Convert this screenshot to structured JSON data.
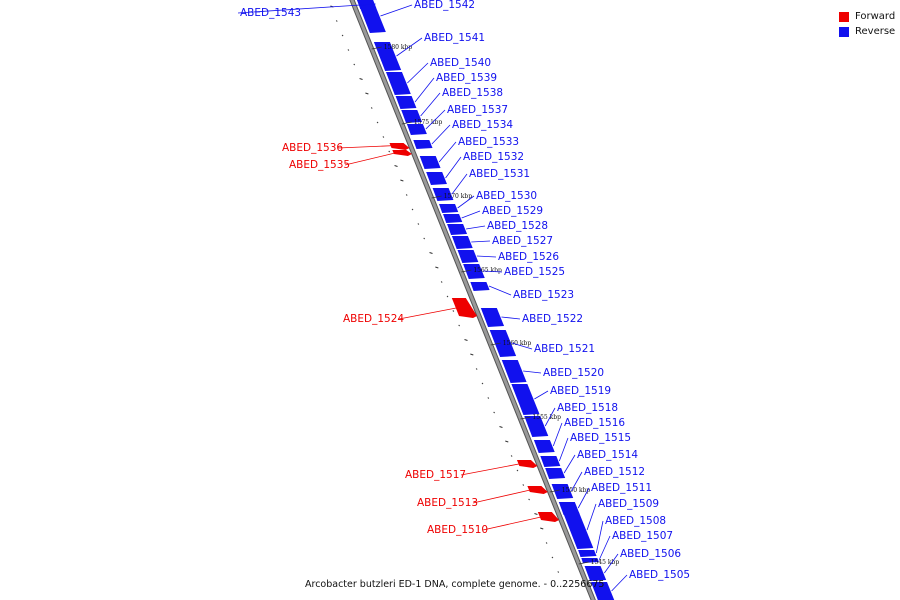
{
  "legend": {
    "forward_label": "Forward",
    "reverse_label": "Reverse",
    "forward_color": "#ee0000",
    "reverse_color": "#1111ee"
  },
  "caption": "Arcobacter butzleri ED-1 DNA, complete genome. - 0..2256675",
  "colors": {
    "axis": "#999999",
    "axis_edge": "#555555",
    "forward": "#ee0000",
    "reverse": "#1111ee"
  },
  "genome": {
    "ticks": [
      "1580 kbp",
      "1575 kbp",
      "1570 kbp",
      "1565 kbp",
      "1560 kbp",
      "1555 kbp",
      "1550 kbp",
      "1545 kbp"
    ],
    "genes": [
      {
        "name": "ABED_1543",
        "strand": "reverse"
      },
      {
        "name": "ABED_1542",
        "strand": "reverse"
      },
      {
        "name": "ABED_1541",
        "strand": "reverse"
      },
      {
        "name": "ABED_1540",
        "strand": "reverse"
      },
      {
        "name": "ABED_1539",
        "strand": "reverse"
      },
      {
        "name": "ABED_1538",
        "strand": "reverse"
      },
      {
        "name": "ABED_1537",
        "strand": "reverse"
      },
      {
        "name": "ABED_1534",
        "strand": "reverse"
      },
      {
        "name": "ABED_1536",
        "strand": "forward"
      },
      {
        "name": "ABED_1535",
        "strand": "forward"
      },
      {
        "name": "ABED_1533",
        "strand": "reverse"
      },
      {
        "name": "ABED_1532",
        "strand": "reverse"
      },
      {
        "name": "ABED_1531",
        "strand": "reverse"
      },
      {
        "name": "ABED_1530",
        "strand": "reverse"
      },
      {
        "name": "ABED_1529",
        "strand": "reverse"
      },
      {
        "name": "ABED_1528",
        "strand": "reverse"
      },
      {
        "name": "ABED_1527",
        "strand": "reverse"
      },
      {
        "name": "ABED_1526",
        "strand": "reverse"
      },
      {
        "name": "ABED_1525",
        "strand": "reverse"
      },
      {
        "name": "ABED_1523",
        "strand": "reverse"
      },
      {
        "name": "ABED_1524",
        "strand": "forward"
      },
      {
        "name": "ABED_1522",
        "strand": "reverse"
      },
      {
        "name": "ABED_1521",
        "strand": "reverse"
      },
      {
        "name": "ABED_1520",
        "strand": "reverse"
      },
      {
        "name": "ABED_1519",
        "strand": "reverse"
      },
      {
        "name": "ABED_1518",
        "strand": "reverse"
      },
      {
        "name": "ABED_1516",
        "strand": "reverse"
      },
      {
        "name": "ABED_1515",
        "strand": "reverse"
      },
      {
        "name": "ABED_1514",
        "strand": "reverse"
      },
      {
        "name": "ABED_1517",
        "strand": "forward"
      },
      {
        "name": "ABED_1512",
        "strand": "reverse"
      },
      {
        "name": "ABED_1511",
        "strand": "reverse"
      },
      {
        "name": "ABED_1513",
        "strand": "forward"
      },
      {
        "name": "ABED_1509",
        "strand": "reverse"
      },
      {
        "name": "ABED_1510",
        "strand": "forward"
      },
      {
        "name": "ABED_1508",
        "strand": "reverse"
      },
      {
        "name": "ABED_1507",
        "strand": "reverse"
      },
      {
        "name": "ABED_1506",
        "strand": "reverse"
      },
      {
        "name": "ABED_1505",
        "strand": "reverse"
      }
    ]
  }
}
